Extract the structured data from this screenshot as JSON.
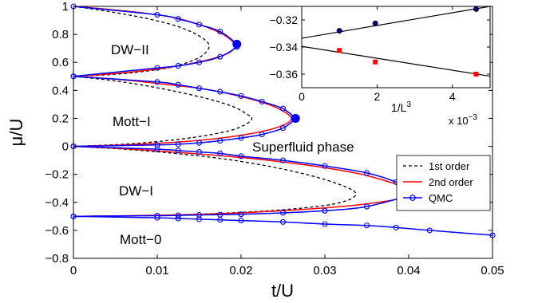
{
  "chart_data": [
    {
      "type": "line",
      "xlabel": "t/U",
      "ylabel": "μ/U",
      "xlim": [
        0,
        0.05
      ],
      "ylim": [
        -0.8,
        1.0
      ],
      "xticks": [
        "0",
        "0.01",
        "0.02",
        "0.03",
        "0.04",
        "0.05"
      ],
      "yticks": [
        "−0.8",
        "−0.6",
        "−0.4",
        "−0.2",
        "0",
        "0.2",
        "0.4",
        "0.6",
        "0.8",
        "1"
      ],
      "grid": false,
      "legend": "right",
      "colors": {
        "first_order": "#000000",
        "second_order": "#ff0000",
        "qmc": "#0000ff"
      },
      "series": [
        {
          "name": "1st order",
          "style": "dashed",
          "lobes": [
            [
              [
                0,
                1.0
              ],
              [
                0.003,
                0.975
              ],
              [
                0.006,
                0.945
              ],
              [
                0.009,
                0.91
              ],
              [
                0.012,
                0.865
              ],
              [
                0.014,
                0.82
              ],
              [
                0.0155,
                0.77
              ],
              [
                0.0162,
                0.72
              ],
              [
                0.0157,
                0.665
              ],
              [
                0.0145,
                0.62
              ],
              [
                0.012,
                0.57
              ],
              [
                0.009,
                0.54
              ],
              [
                0.005,
                0.515
              ],
              [
                0,
                0.5
              ]
            ],
            [
              [
                0,
                0.5
              ],
              [
                0.004,
                0.475
              ],
              [
                0.008,
                0.44
              ],
              [
                0.012,
                0.395
              ],
              [
                0.016,
                0.34
              ],
              [
                0.019,
                0.285
              ],
              [
                0.0207,
                0.23
              ],
              [
                0.0213,
                0.2
              ],
              [
                0.0205,
                0.155
              ],
              [
                0.0185,
                0.11
              ],
              [
                0.015,
                0.07
              ],
              [
                0.011,
                0.04
              ],
              [
                0.006,
                0.015
              ],
              [
                0,
                0
              ]
            ],
            [
              [
                0,
                0
              ],
              [
                0.006,
                -0.02
              ],
              [
                0.012,
                -0.05
              ],
              [
                0.018,
                -0.09
              ],
              [
                0.024,
                -0.15
              ],
              [
                0.029,
                -0.22
              ],
              [
                0.0325,
                -0.29
              ],
              [
                0.0337,
                -0.34
              ],
              [
                0.0325,
                -0.39
              ],
              [
                0.029,
                -0.43
              ],
              [
                0.022,
                -0.465
              ],
              [
                0.012,
                -0.49
              ],
              [
                0,
                -0.5
              ]
            ]
          ]
        },
        {
          "name": "2nd order",
          "style": "solid",
          "lobes": [
            [
              [
                0,
                1.0
              ],
              [
                0.004,
                0.98
              ],
              [
                0.008,
                0.955
              ],
              [
                0.012,
                0.92
              ],
              [
                0.015,
                0.87
              ],
              [
                0.0172,
                0.82
              ],
              [
                0.0186,
                0.77
              ],
              [
                0.0193,
                0.72
              ],
              [
                0.0186,
                0.67
              ],
              [
                0.0165,
                0.625
              ],
              [
                0.013,
                0.58
              ],
              [
                0.009,
                0.545
              ],
              [
                0.005,
                0.52
              ],
              [
                0,
                0.5
              ]
            ],
            [
              [
                0,
                0.5
              ],
              [
                0.005,
                0.48
              ],
              [
                0.01,
                0.45
              ],
              [
                0.015,
                0.415
              ],
              [
                0.019,
                0.37
              ],
              [
                0.0225,
                0.315
              ],
              [
                0.0248,
                0.26
              ],
              [
                0.026,
                0.2
              ],
              [
                0.025,
                0.15
              ],
              [
                0.022,
                0.1
              ],
              [
                0.017,
                0.055
              ],
              [
                0.011,
                0.025
              ],
              [
                0.005,
                0.008
              ],
              [
                0,
                0
              ]
            ],
            [
              [
                0,
                0
              ],
              [
                0.007,
                -0.02
              ],
              [
                0.014,
                -0.05
              ],
              [
                0.021,
                -0.085
              ],
              [
                0.028,
                -0.135
              ],
              [
                0.034,
                -0.195
              ],
              [
                0.038,
                -0.26
              ],
              [
                0.0405,
                -0.31
              ],
              [
                0.0405,
                -0.345
              ],
              [
                0.0375,
                -0.39
              ],
              [
                0.031,
                -0.435
              ],
              [
                0.02,
                -0.475
              ],
              [
                0.01,
                -0.492
              ],
              [
                0,
                -0.5
              ]
            ]
          ]
        },
        {
          "name": "QMC",
          "style": "solid-circles",
          "lobes": [
            [
              [
                0,
                1.0
              ],
              [
                0.01,
                0.94
              ],
              [
                0.0125,
                0.91
              ],
              [
                0.015,
                0.87
              ],
              [
                0.0175,
                0.82
              ],
              [
                0.0195,
                0.73
              ],
              [
                0.0195,
                0.71
              ],
              [
                0.0175,
                0.64
              ],
              [
                0.015,
                0.6
              ],
              [
                0.0125,
                0.575
              ],
              [
                0.01,
                0.56
              ],
              [
                0,
                0.5
              ]
            ],
            [
              [
                0,
                0.5
              ],
              [
                0.01,
                0.46
              ],
              [
                0.0125,
                0.44
              ],
              [
                0.015,
                0.415
              ],
              [
                0.0175,
                0.39
              ],
              [
                0.02,
                0.36
              ],
              [
                0.0225,
                0.32
              ],
              [
                0.025,
                0.27
              ],
              [
                0.0265,
                0.2
              ],
              [
                0.0265,
                0.195
              ],
              [
                0.025,
                0.13
              ],
              [
                0.0225,
                0.085
              ],
              [
                0.02,
                0.06
              ],
              [
                0.0175,
                0.04
              ],
              [
                0.015,
                0.025
              ],
              [
                0.0125,
                0.015
              ],
              [
                0.01,
                0.01
              ],
              [
                0,
                0
              ]
            ],
            [
              [
                0,
                0
              ],
              [
                0.01,
                -0.02
              ],
              [
                0.0125,
                -0.03
              ],
              [
                0.015,
                -0.04
              ],
              [
                0.0175,
                -0.05
              ],
              [
                0.02,
                -0.07
              ],
              [
                0.025,
                -0.1
              ],
              [
                0.03,
                -0.14
              ],
              [
                0.035,
                -0.19
              ],
              [
                0.0385,
                -0.255
              ],
              [
                0.041,
                -0.33
              ],
              [
                0.041,
                -0.335
              ],
              [
                0.035,
                -0.43
              ],
              [
                0.03,
                -0.46
              ],
              [
                0.025,
                -0.475
              ],
              [
                0.02,
                -0.485
              ],
              [
                0.0175,
                -0.488
              ],
              [
                0.015,
                -0.49
              ],
              [
                0.0125,
                -0.493
              ],
              [
                0.01,
                -0.495
              ],
              [
                0,
                -0.5
              ]
            ],
            [
              [
                0,
                -0.5
              ],
              [
                0.01,
                -0.51
              ],
              [
                0.0125,
                -0.515
              ],
              [
                0.015,
                -0.52
              ],
              [
                0.0175,
                -0.525
              ],
              [
                0.02,
                -0.53
              ],
              [
                0.025,
                -0.54
              ],
              [
                0.03,
                -0.555
              ],
              [
                0.035,
                -0.565
              ],
              [
                0.0385,
                -0.58
              ],
              [
                0.0425,
                -0.6
              ],
              [
                0.05,
                -0.635
              ]
            ]
          ]
        }
      ],
      "region_labels": {
        "dw2": "DW−II",
        "mott1": "Mott−I",
        "dw1": "DW−I",
        "mott0": "Mott−0",
        "sf": "Superfluid phase"
      }
    },
    {
      "type": "scatter",
      "xlabel": "1/L",
      "xlabel_sup": "3",
      "xscale_label": "x 10",
      "xscale_sup": "−3",
      "xlim": [
        0,
        5
      ],
      "ylim": [
        -0.37,
        -0.31
      ],
      "xticks": [
        "0",
        "2",
        "4"
      ],
      "yticks": [
        "−0.32",
        "−0.34",
        "−0.36"
      ],
      "series": [
        {
          "marker": "circle",
          "color": "#00007a",
          "points": [
            [
              1.0,
              -0.328
            ],
            [
              1.953,
              -0.3225
            ],
            [
              4.63,
              -0.312
            ]
          ],
          "fit": [
            [
              0,
              -0.3335
            ],
            [
              5,
              -0.31
            ]
          ]
        },
        {
          "marker": "square",
          "color": "#ff0000",
          "points": [
            [
              1.0,
              -0.3425
            ],
            [
              1.953,
              -0.351
            ],
            [
              4.63,
              -0.36
            ]
          ],
          "fit": [
            [
              0,
              -0.3395
            ],
            [
              5,
              -0.3615
            ]
          ]
        }
      ]
    }
  ]
}
